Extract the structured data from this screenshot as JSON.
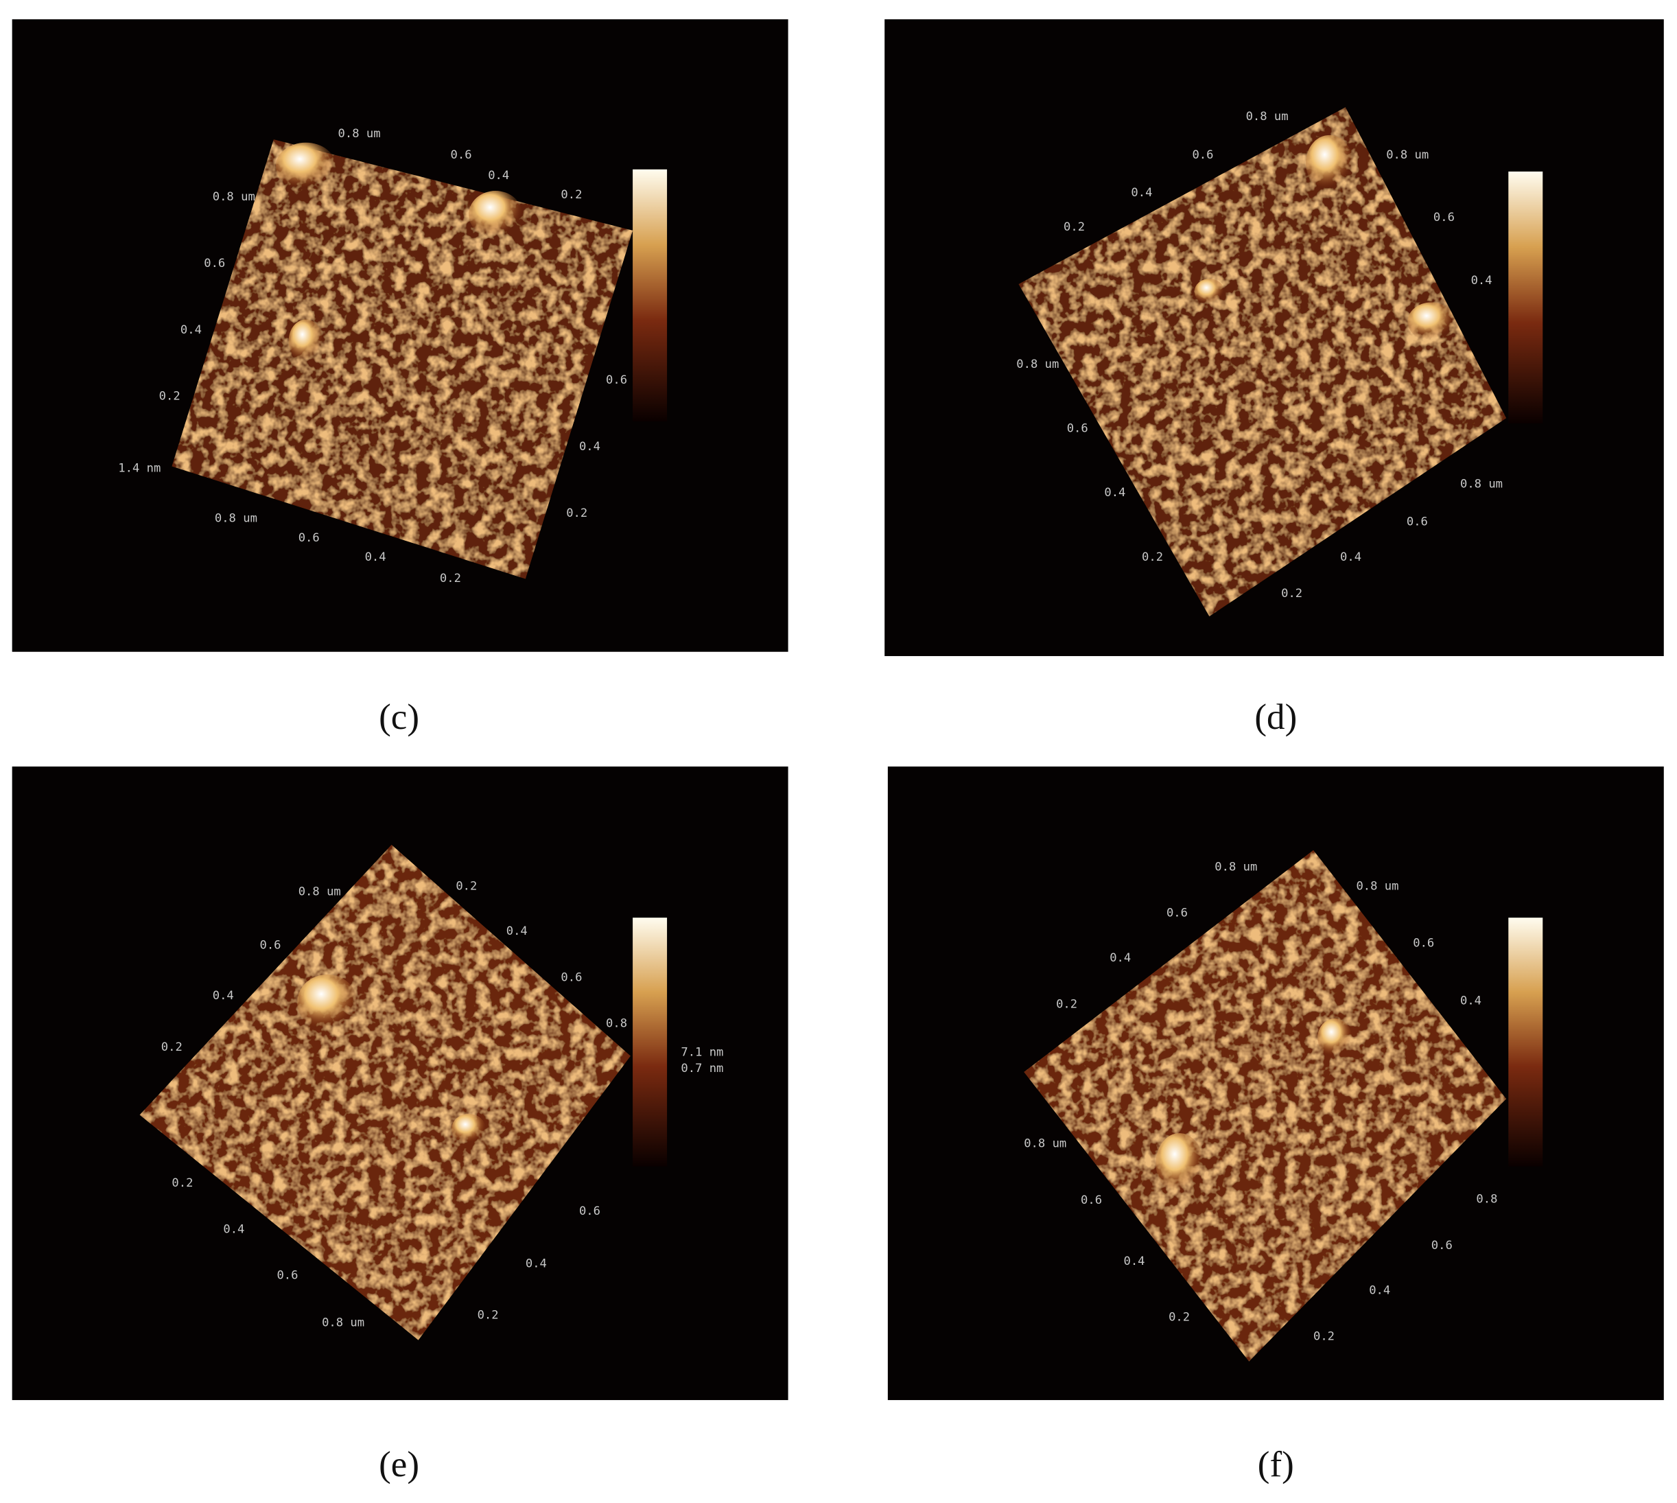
{
  "panels": [
    {
      "caption": "(c)",
      "labels": [
        "0.8 um",
        "0.6",
        "0.4",
        "0.2",
        "0.8 um",
        "0.6",
        "0.4",
        "0.2",
        "1.4 nm",
        "0.8 um",
        "0.6",
        "0.4",
        "0.2",
        "0.6",
        "0.4",
        "0.2"
      ]
    },
    {
      "caption": "(d)",
      "labels": [
        "0.8 um",
        "0.6",
        "0.4",
        "0.2",
        "0.8 um",
        "0.6",
        "0.4",
        "0.8 um",
        "0.6",
        "0.4",
        "0.2",
        "0.2",
        "0.4",
        "0.6",
        "0.8 um"
      ]
    },
    {
      "caption": "(e)",
      "labels": [
        "0.8 um",
        "0.2",
        "0.4",
        "0.6",
        "0.8",
        "0.6",
        "0.4",
        "0.2",
        "7.1 nm",
        "0.7 nm",
        "0.2",
        "0.4",
        "0.6",
        "0.8 um",
        "0.2",
        "0.4",
        "0.6"
      ]
    },
    {
      "caption": "(f)",
      "labels": [
        "0.8 um",
        "0.6",
        "0.4",
        "0.2",
        "0.8 um",
        "0.6",
        "0.4",
        "0.8 um",
        "0.6",
        "0.4",
        "0.2",
        "0.2",
        "0.4",
        "0.6",
        "0.8"
      ]
    }
  ]
}
